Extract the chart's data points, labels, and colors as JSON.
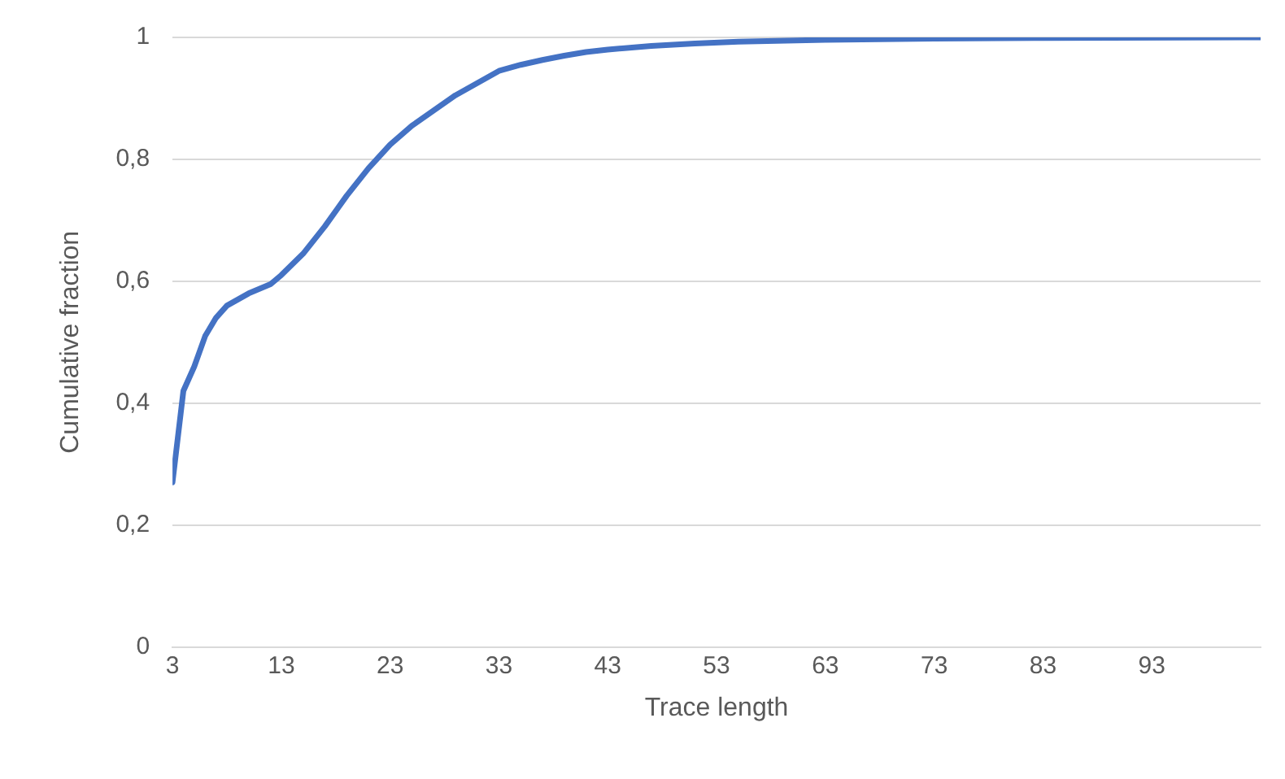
{
  "chart_data": {
    "type": "line",
    "xlabel": "Trace length",
    "ylabel": "Cumulative fraction",
    "x": [
      3,
      4,
      5,
      6,
      7,
      8,
      9,
      10,
      12,
      13,
      15,
      17,
      19,
      21,
      23,
      25,
      27,
      29,
      31,
      33,
      35,
      37,
      39,
      41,
      43,
      47,
      51,
      55,
      63,
      73,
      83,
      103
    ],
    "series": [
      {
        "color": "#4472c4",
        "values": [
          0.27,
          0.42,
          0.46,
          0.51,
          0.54,
          0.56,
          0.57,
          0.58,
          0.595,
          0.61,
          0.645,
          0.69,
          0.74,
          0.785,
          0.824,
          0.855,
          0.88,
          0.905,
          0.925,
          0.945,
          0.955,
          0.963,
          0.97,
          0.976,
          0.98,
          0.986,
          0.99,
          0.993,
          0.996,
          0.998,
          0.999,
          1
        ]
      }
    ],
    "xlim": [
      3,
      103
    ],
    "xticks": [
      3,
      13,
      23,
      33,
      43,
      53,
      63,
      73,
      83,
      93
    ],
    "ylim": [
      0,
      1
    ],
    "yticks": [
      0,
      {
        "value": 0.2,
        "label": "0,2"
      },
      {
        "value": 0.4,
        "label": "0,4"
      },
      {
        "value": 0.6,
        "label": "0,6"
      },
      {
        "value": 0.8,
        "label": "0,8"
      },
      1
    ],
    "grid": "y",
    "legend": false,
    "marker": "none",
    "line_style": "solid"
  }
}
